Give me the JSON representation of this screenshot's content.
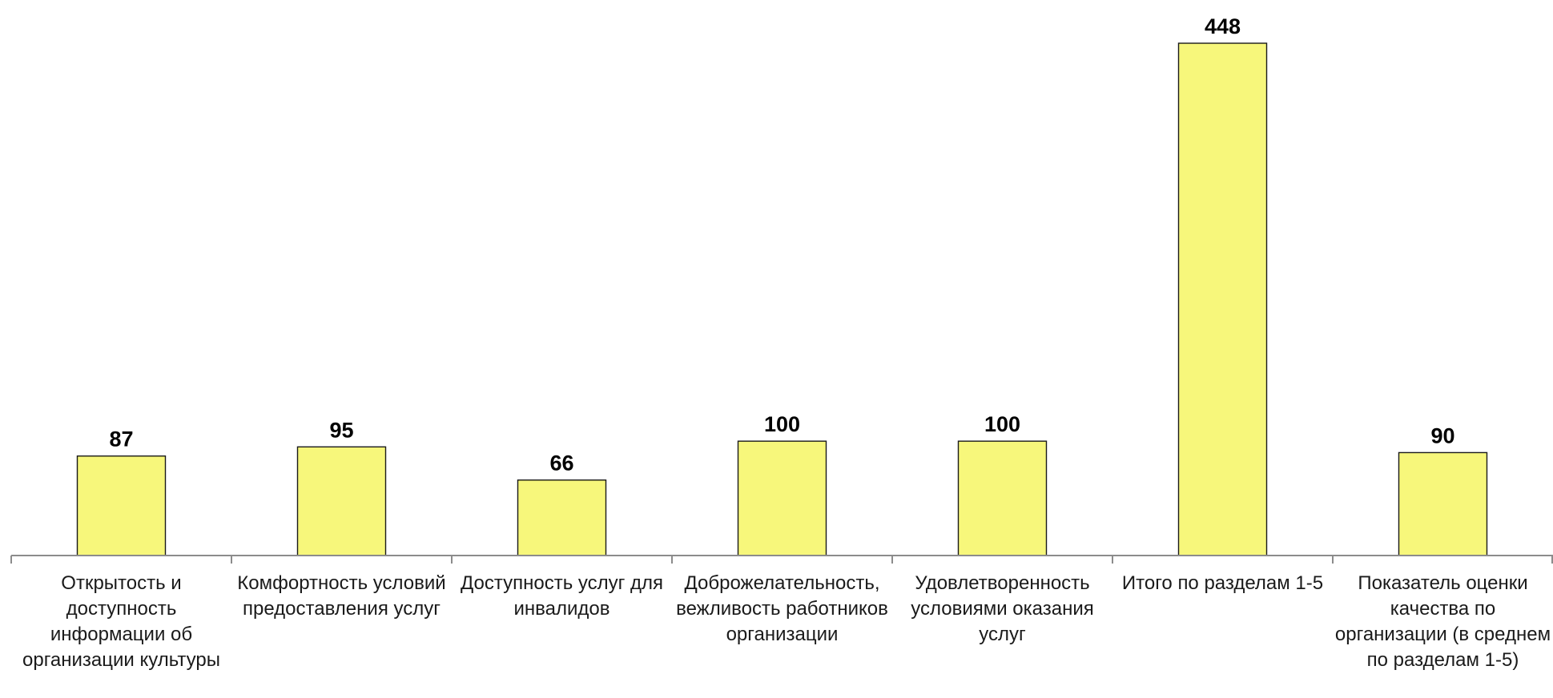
{
  "chart_data": {
    "type": "bar",
    "categories": [
      "Открытость и доступность информации об организации культуры",
      "Комфортность условий предоставления услуг",
      "Доступность услуг для инвалидов",
      "Доброжелательность, вежливость работников организации",
      "Удовлетворенность условиями оказания услуг",
      "Итого по разделам 1-5",
      "Показатель оценки качества по организации (в среднем по разделам 1-5)"
    ],
    "values": [
      87,
      95,
      66,
      100,
      100,
      448,
      90
    ],
    "data_labels": [
      "87",
      "95",
      "66",
      "100",
      "100",
      "448",
      "90"
    ],
    "title": "",
    "xlabel": "",
    "ylabel": "",
    "ylim": [
      0,
      448
    ],
    "grid": false,
    "legend": "none",
    "bar_color": "#f7f77b",
    "bar_edge_color": "#1a1a1a",
    "axis_color": "#8c8c8c"
  }
}
